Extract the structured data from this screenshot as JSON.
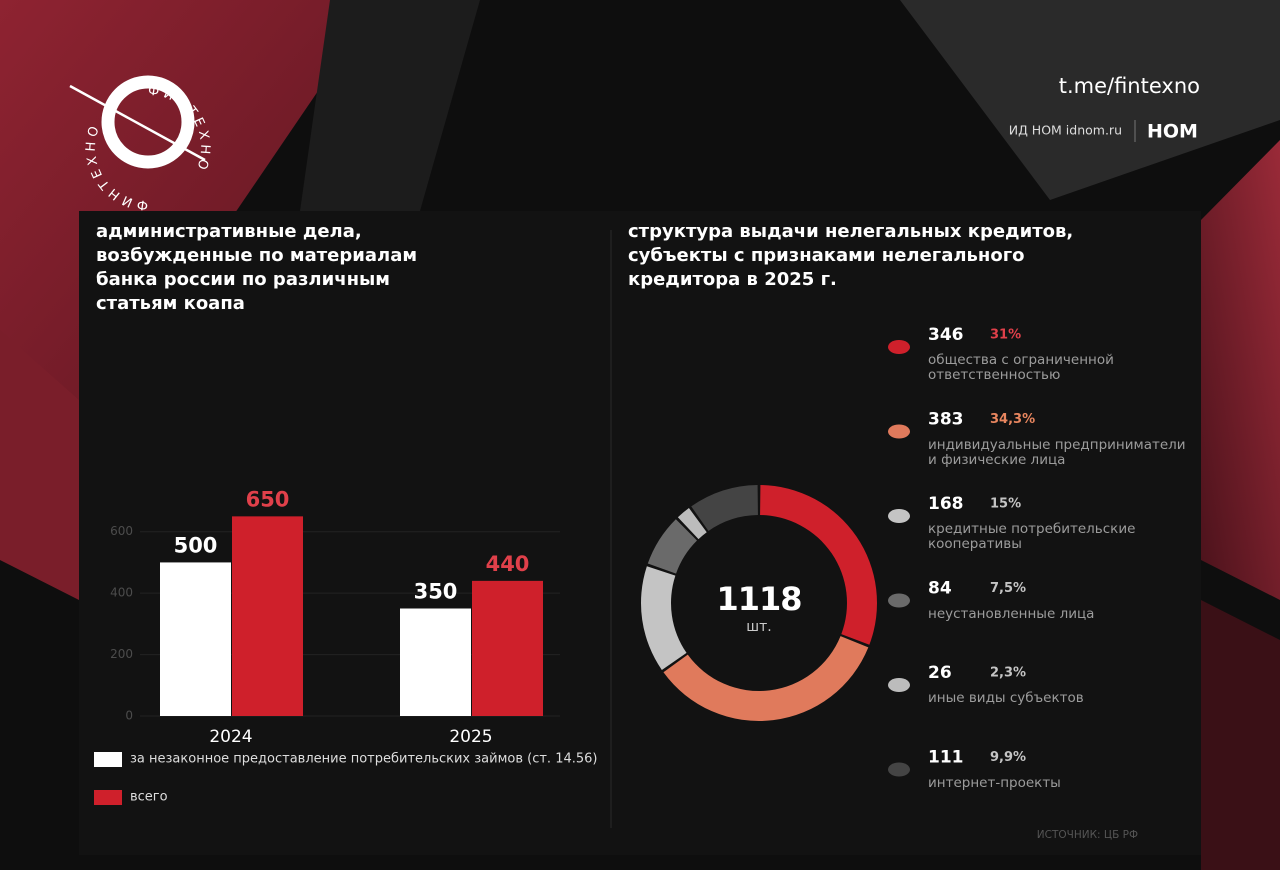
{
  "header": {
    "logo_text": "ФИНТЕХНО",
    "channel": "t.me/fintexno",
    "publisher": "ИД НОМ idnom.ru",
    "brand": "НОМ"
  },
  "chart_data": [
    {
      "type": "bar",
      "title": "административные дела,\nвозбужденные по материалам\nбанка россии по различным\nстатьям коапа",
      "categories": [
        "2024",
        "2025"
      ],
      "series": [
        {
          "name": "за незаконное предоставление потребительских займов (ст. 14.56)",
          "color": "#ffffff",
          "values": [
            500,
            350
          ]
        },
        {
          "name": "всего",
          "color": "#cf202b",
          "values": [
            650,
            440
          ]
        }
      ],
      "ylim": [
        0,
        700
      ],
      "yticks": [
        0,
        200,
        400,
        600
      ],
      "grid": true
    },
    {
      "type": "donut",
      "title": "структура выдачи нелегальных кредитов,\nсубъекты с признаками нелегального\nкредитора в 2025 г.",
      "total": 1118,
      "total_unit": "шт.",
      "categories": [
        "общества с ограниченной ответственностью",
        "индивидуальные предприниматели и физические лица",
        "кредитные потребительские кооперативы",
        "неустановленные лица",
        "иные виды субъектов",
        "интернет-проекты"
      ],
      "values": [
        346,
        383,
        168,
        84,
        26,
        111
      ],
      "percents": [
        31,
        34.3,
        15,
        7.5,
        2.3,
        9.9
      ],
      "percent_labels": [
        "31%",
        "34,3%",
        "15%",
        "7,5%",
        "2,3%",
        "9,9%"
      ],
      "colors": [
        "#cf202b",
        "#e07a5c",
        "#c4c4c4",
        "#6a6a6a",
        "#bcbcbc",
        "#444444"
      ],
      "percent_colors": [
        "#e0404a",
        "#e8865f",
        "#c4c4c4",
        "#c4c4c4",
        "#c4c4c4",
        "#c4c4c4"
      ]
    }
  ],
  "source": "ИСТОЧНИК: ЦБ РФ"
}
